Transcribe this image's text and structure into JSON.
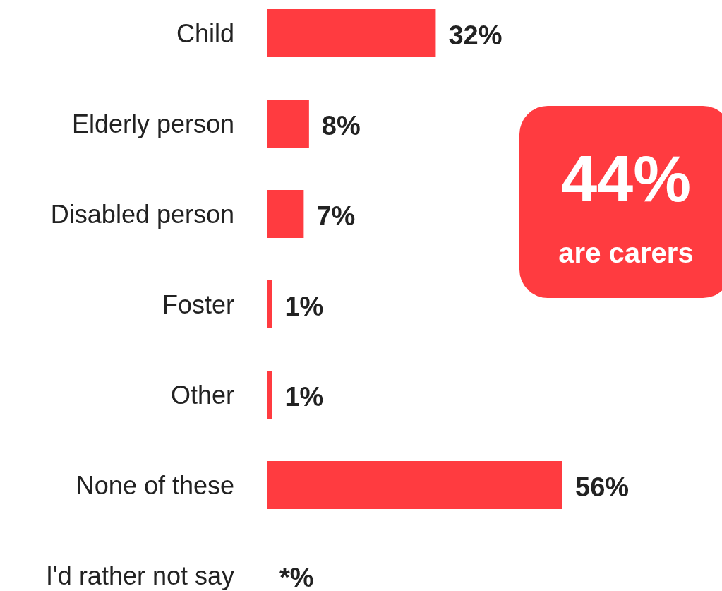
{
  "chart_data": {
    "type": "bar",
    "orientation": "horizontal",
    "categories": [
      "Child",
      "Elderly person",
      "Disabled person",
      "Foster",
      "Other",
      "None of these",
      "I'd rather not say"
    ],
    "values": [
      32,
      8,
      7,
      1,
      1,
      56,
      null
    ],
    "value_labels": [
      "32%",
      "8%",
      "7%",
      "1%",
      "1%",
      "56%",
      "*%"
    ],
    "color": "#ff3b40",
    "annotations": [
      "44%",
      "are carers"
    ]
  }
}
